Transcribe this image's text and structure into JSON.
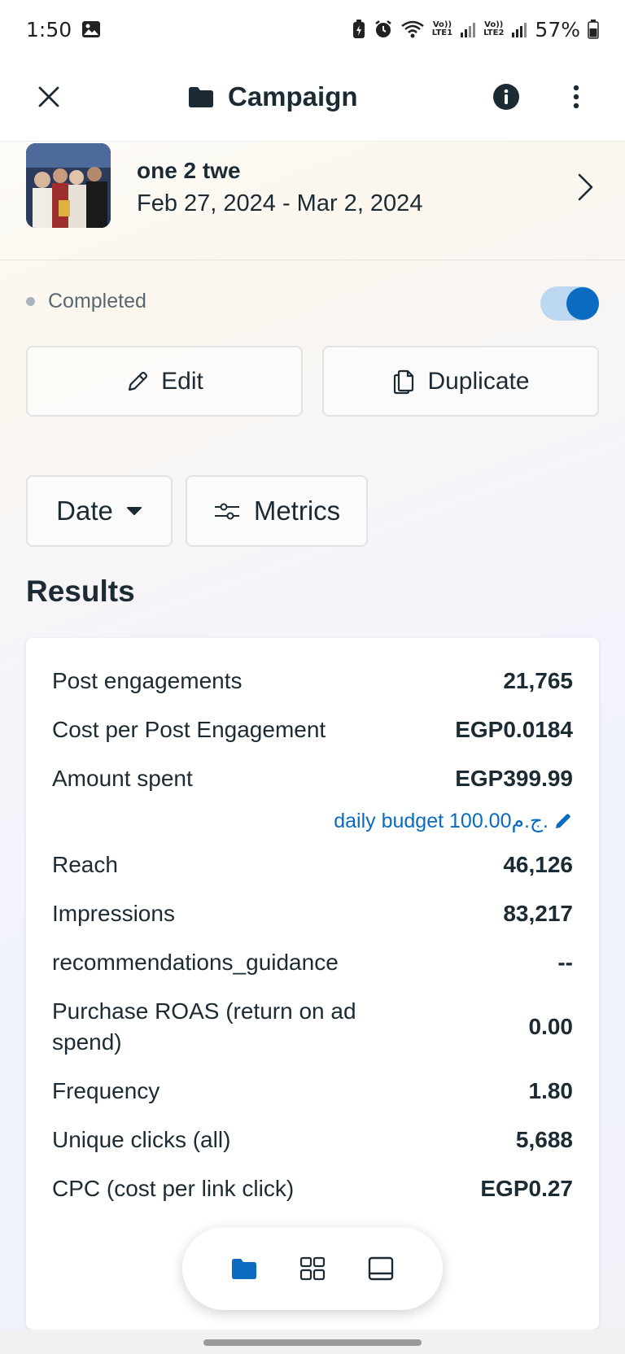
{
  "status_bar": {
    "time": "1:50",
    "battery": "57%",
    "sim1": "LTE1",
    "sim2": "LTE2",
    "volte": "Vo))"
  },
  "header": {
    "title": "Campaign"
  },
  "campaign": {
    "name": "one 2 twe",
    "dates": "Feb 27, 2024 - Mar 2, 2024"
  },
  "status": {
    "label": "Completed",
    "toggle_on": true
  },
  "actions": {
    "edit_label": "Edit",
    "duplicate_label": "Duplicate"
  },
  "filters": {
    "date_label": "Date",
    "metrics_label": "Metrics"
  },
  "results": {
    "title": "Results",
    "rows": [
      {
        "label": "Post engagements",
        "value": "21,765"
      },
      {
        "label": "Cost per Post Engagement",
        "value": "EGP0.0184"
      },
      {
        "label": "Amount spent",
        "value": "EGP399.99"
      },
      {
        "label": "Reach",
        "value": "46,126"
      },
      {
        "label": "Impressions",
        "value": "83,217"
      },
      {
        "label": "recommendations_guidance",
        "value": "--"
      },
      {
        "label": "Purchase ROAS (return on ad spend)",
        "value": "0.00"
      },
      {
        "label": "Frequency",
        "value": "1.80"
      },
      {
        "label": "Unique clicks (all)",
        "value": "5,688"
      },
      {
        "label": "CPC (cost per link click)",
        "value": "EGP0.27"
      }
    ],
    "budget_link": "daily budget 100.00ج.م."
  },
  "colors": {
    "accent": "#0a6bc1",
    "text": "#1c2b33",
    "muted": "#5b6770"
  },
  "icons": {
    "close": "close-icon",
    "folder": "folder-icon",
    "info": "info-icon",
    "more": "more-vertical-icon",
    "chevron": "chevron-right-icon",
    "edit": "pencil-icon",
    "duplicate": "duplicate-icon",
    "dropdown": "caret-down-icon",
    "metrics": "sliders-icon",
    "nav_campaigns": "folder-icon",
    "nav_adsets": "grid-icon",
    "nav_ads": "ad-icon"
  }
}
